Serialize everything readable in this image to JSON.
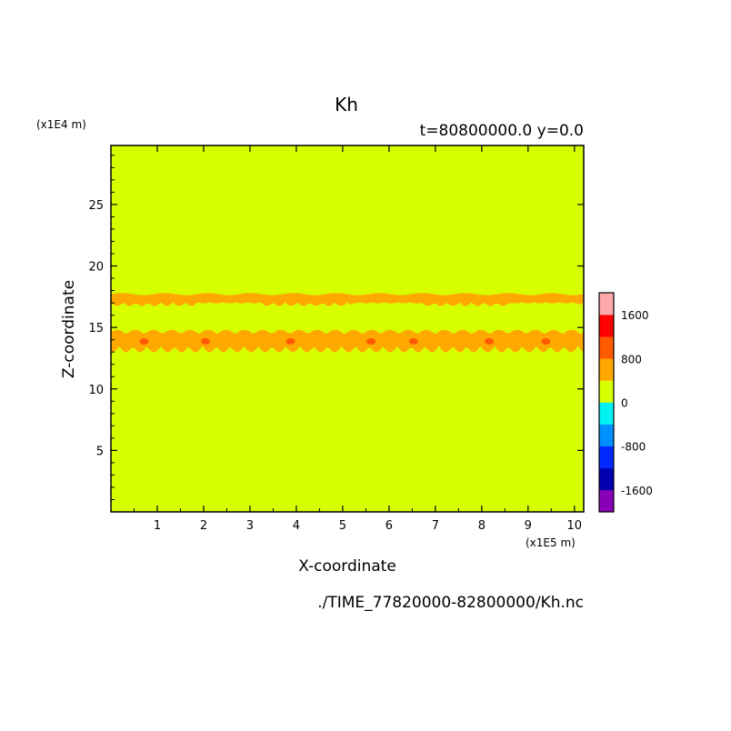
{
  "chart_data": {
    "type": "heatmap",
    "title": "Kh",
    "subtitle": "t=80800000.0 y=0.0",
    "xlabel": "X-coordinate",
    "ylabel": "Z-coordinate",
    "x_unit": "(x1E5 m)",
    "y_unit": "(x1E4 m)",
    "file_label": "./TIME_77820000-82800000/Kh.nc",
    "xlim": [
      0,
      10.2
    ],
    "ylim": [
      0,
      29.8
    ],
    "x_ticks": [
      "1",
      "2",
      "3",
      "4",
      "5",
      "6",
      "7",
      "8",
      "9",
      "10"
    ],
    "y_ticks": [
      "5",
      "10",
      "15",
      "20",
      "25"
    ],
    "background_value_range": [
      0,
      400
    ],
    "bands": [
      {
        "z_center": 17.4,
        "z_halfwidth": 0.35,
        "range": [
          400,
          800
        ]
      },
      {
        "z_center": 14.0,
        "z_halfwidth": 0.45,
        "range": [
          400,
          800
        ],
        "patches_range": [
          800,
          1200
        ]
      }
    ],
    "colorbar": {
      "levels": [
        -2000,
        -1600,
        -1200,
        -800,
        -400,
        0,
        400,
        800,
        1200,
        1600,
        2000
      ],
      "tick_labels": [
        "-1600",
        "-800",
        "0",
        "800",
        "1600"
      ],
      "tick_values": [
        -1600,
        -800,
        0,
        800,
        1600
      ],
      "colors": [
        "#8a00b8",
        "#0000b0",
        "#0028ff",
        "#0090ff",
        "#00f2f2",
        "#d8ff00",
        "#ffa800",
        "#ff5a00",
        "#ff0000",
        "#ffaaaa"
      ]
    }
  }
}
